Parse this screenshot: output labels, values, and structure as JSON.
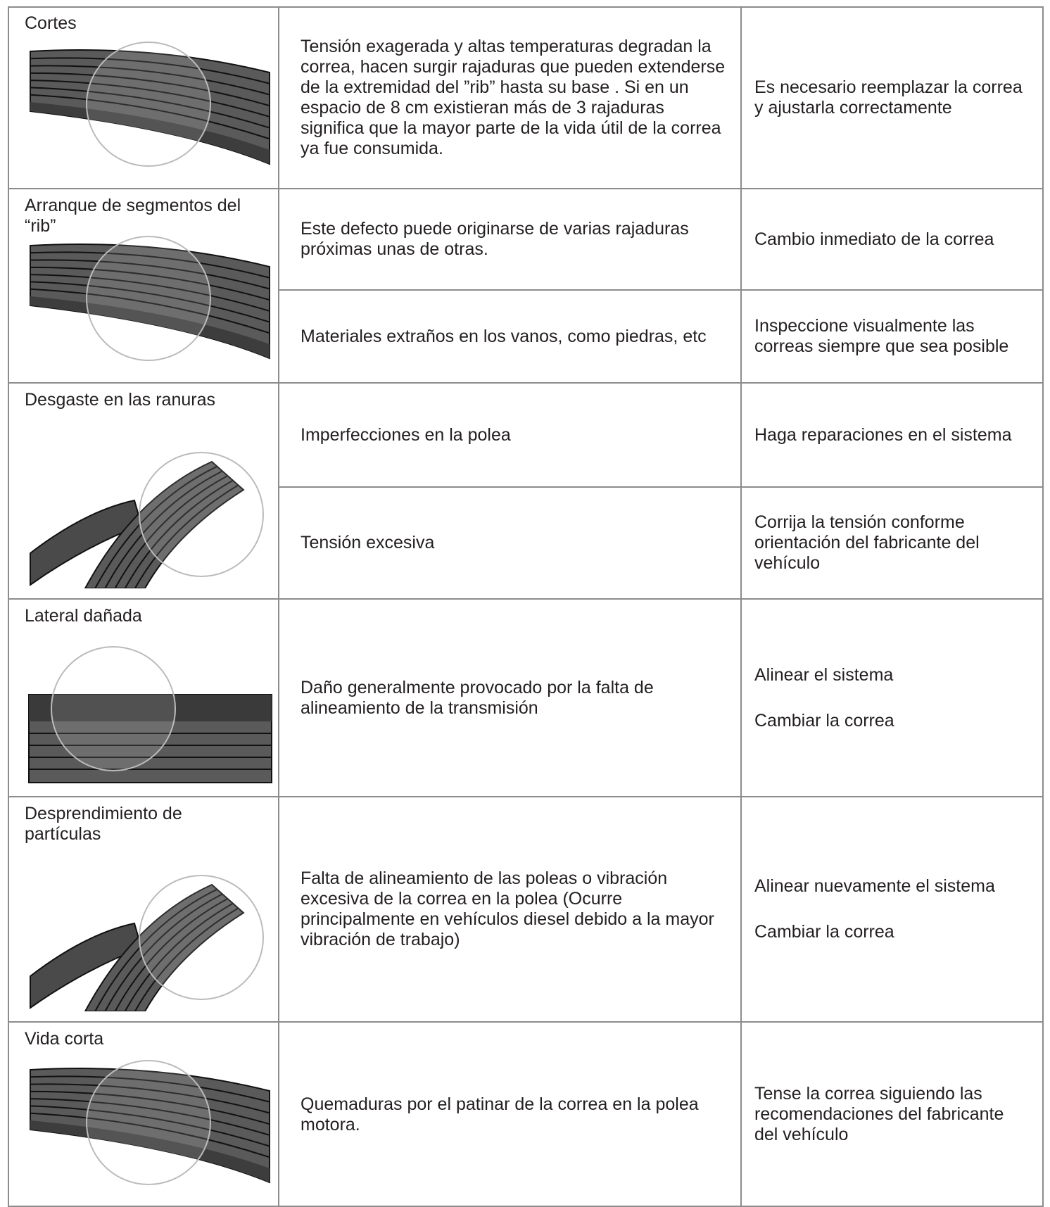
{
  "table": {
    "rows": [
      {
        "defect": "Cortes",
        "causes": [
          {
            "cause": "Tensión exagerada y altas temperaturas degradan la correa, hacen surgir rajaduras que pueden extenderse de la extremidad del ”rib” hasta su base . Si en un espacio de 8 cm existieran más de 3 rajaduras significa que la mayor parte de la vida útil de la correa ya fue consumida.",
            "solutions": [
              "Es necesario reemplazar la correa y ajustarla correctamente"
            ]
          }
        ]
      },
      {
        "defect": "Arranque de segmentos del “rib”",
        "causes": [
          {
            "cause": "Este defecto puede originarse de varias rajaduras próximas unas de otras.",
            "solutions": [
              "Cambio inmediato de la correa"
            ]
          },
          {
            "cause": "Materiales extraños en los vanos, como piedras, etc",
            "solutions": [
              "Inspeccione visualmente las correas siempre que sea posible"
            ]
          }
        ]
      },
      {
        "defect": "Desgaste en las ranuras",
        "causes": [
          {
            "cause": "Imperfecciones en la polea",
            "solutions": [
              "Haga reparaciones en el sistema"
            ]
          },
          {
            "cause": "Tensión excesiva",
            "solutions": [
              "Corrija la tensión conforme orientación del fabricante del vehículo"
            ]
          }
        ]
      },
      {
        "defect": "Lateral dañada",
        "causes": [
          {
            "cause": "Daño generalmente provocado por la falta de alineamiento de la transmisión",
            "solutions": [
              "Alinear el sistema",
              "Cambiar la correa"
            ]
          }
        ]
      },
      {
        "defect": "Desprendimiento de partículas",
        "causes": [
          {
            "cause": "Falta de alineamiento de las poleas o vibración excesiva de la correa en la polea (Ocurre principalmente en vehículos diesel debido a la mayor vibración de trabajo)",
            "solutions": [
              "Alinear nuevamente el sistema",
              "Cambiar la correa"
            ]
          }
        ]
      },
      {
        "defect": "Vida corta",
        "causes": [
          {
            "cause": "Quemaduras por el patinar de la correa en la polea motora.",
            "solutions": [
              "Tense la correa siguiendo las recomendaciones del fabricante del vehículo"
            ]
          }
        ]
      }
    ]
  }
}
